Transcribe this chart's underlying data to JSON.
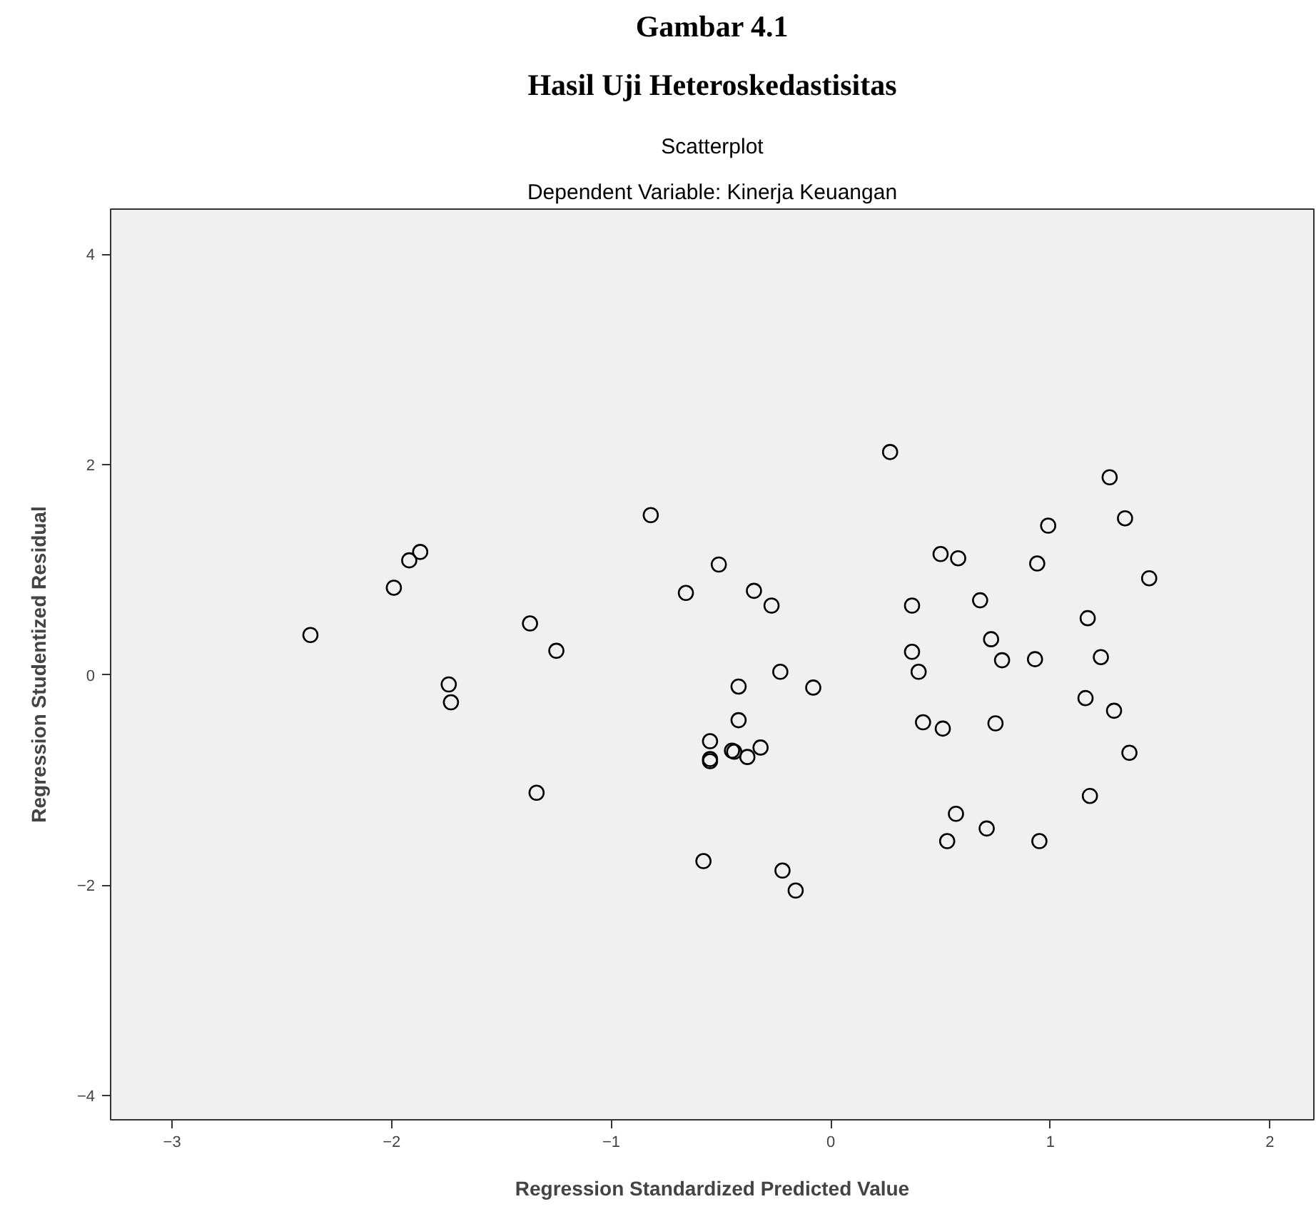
{
  "chart_data": {
    "type": "scatter",
    "title": "Gambar 4.1",
    "subtitle": "Hasil Uji Heteroskedastisitas",
    "annotations": [
      "Scatterplot",
      "Dependent Variable: Kinerja Keuangan"
    ],
    "xlabel": "Regression Standardized Predicted Value",
    "ylabel": "Regression Studentized Residual",
    "xlim": [
      -3.28,
      2.2
    ],
    "ylim": [
      -4.23,
      4.43
    ],
    "xticks": [
      -3,
      -2,
      -1,
      0,
      1,
      2
    ],
    "yticks": [
      -4,
      -2,
      0,
      2,
      4
    ],
    "grid": false,
    "marker": "circle",
    "series": [
      {
        "color": "#000000",
        "x": [
          -0.82,
          -1.87,
          -1.92,
          -1.99,
          -2.37,
          -0.51,
          -0.66,
          -0.35,
          -0.27,
          -1.37,
          -1.25,
          -1.74,
          -1.73,
          -1.34,
          -0.42,
          -0.23,
          -0.08,
          -0.42,
          -0.55,
          -0.55,
          -0.55,
          -0.45,
          -0.44,
          -0.38,
          -0.32,
          -0.58,
          -0.22,
          -0.16,
          0.27,
          1.27,
          1.34,
          0.99,
          0.5,
          0.58,
          0.94,
          1.45,
          0.37,
          0.68,
          1.17,
          0.73,
          0.37,
          0.4,
          0.78,
          0.93,
          1.23,
          1.16,
          1.29,
          0.42,
          0.51,
          0.75,
          1.36,
          1.18,
          0.57,
          0.71,
          0.53,
          0.95
        ],
        "values": [
          1.52,
          1.17,
          1.09,
          0.83,
          0.38,
          1.05,
          0.78,
          0.8,
          0.66,
          0.49,
          0.23,
          -0.09,
          -0.26,
          -1.12,
          -0.11,
          0.03,
          -0.12,
          -0.43,
          -0.63,
          -0.8,
          -0.82,
          -0.72,
          -0.73,
          -0.78,
          -0.69,
          -1.77,
          -1.86,
          -2.05,
          2.12,
          1.88,
          1.49,
          1.42,
          1.15,
          1.11,
          1.06,
          0.92,
          0.66,
          0.71,
          0.54,
          0.34,
          0.22,
          0.03,
          0.14,
          0.15,
          0.17,
          -0.22,
          -0.34,
          -0.45,
          -0.51,
          -0.46,
          -0.74,
          -1.15,
          -1.32,
          -1.46,
          -1.58,
          -1.58
        ]
      }
    ]
  }
}
